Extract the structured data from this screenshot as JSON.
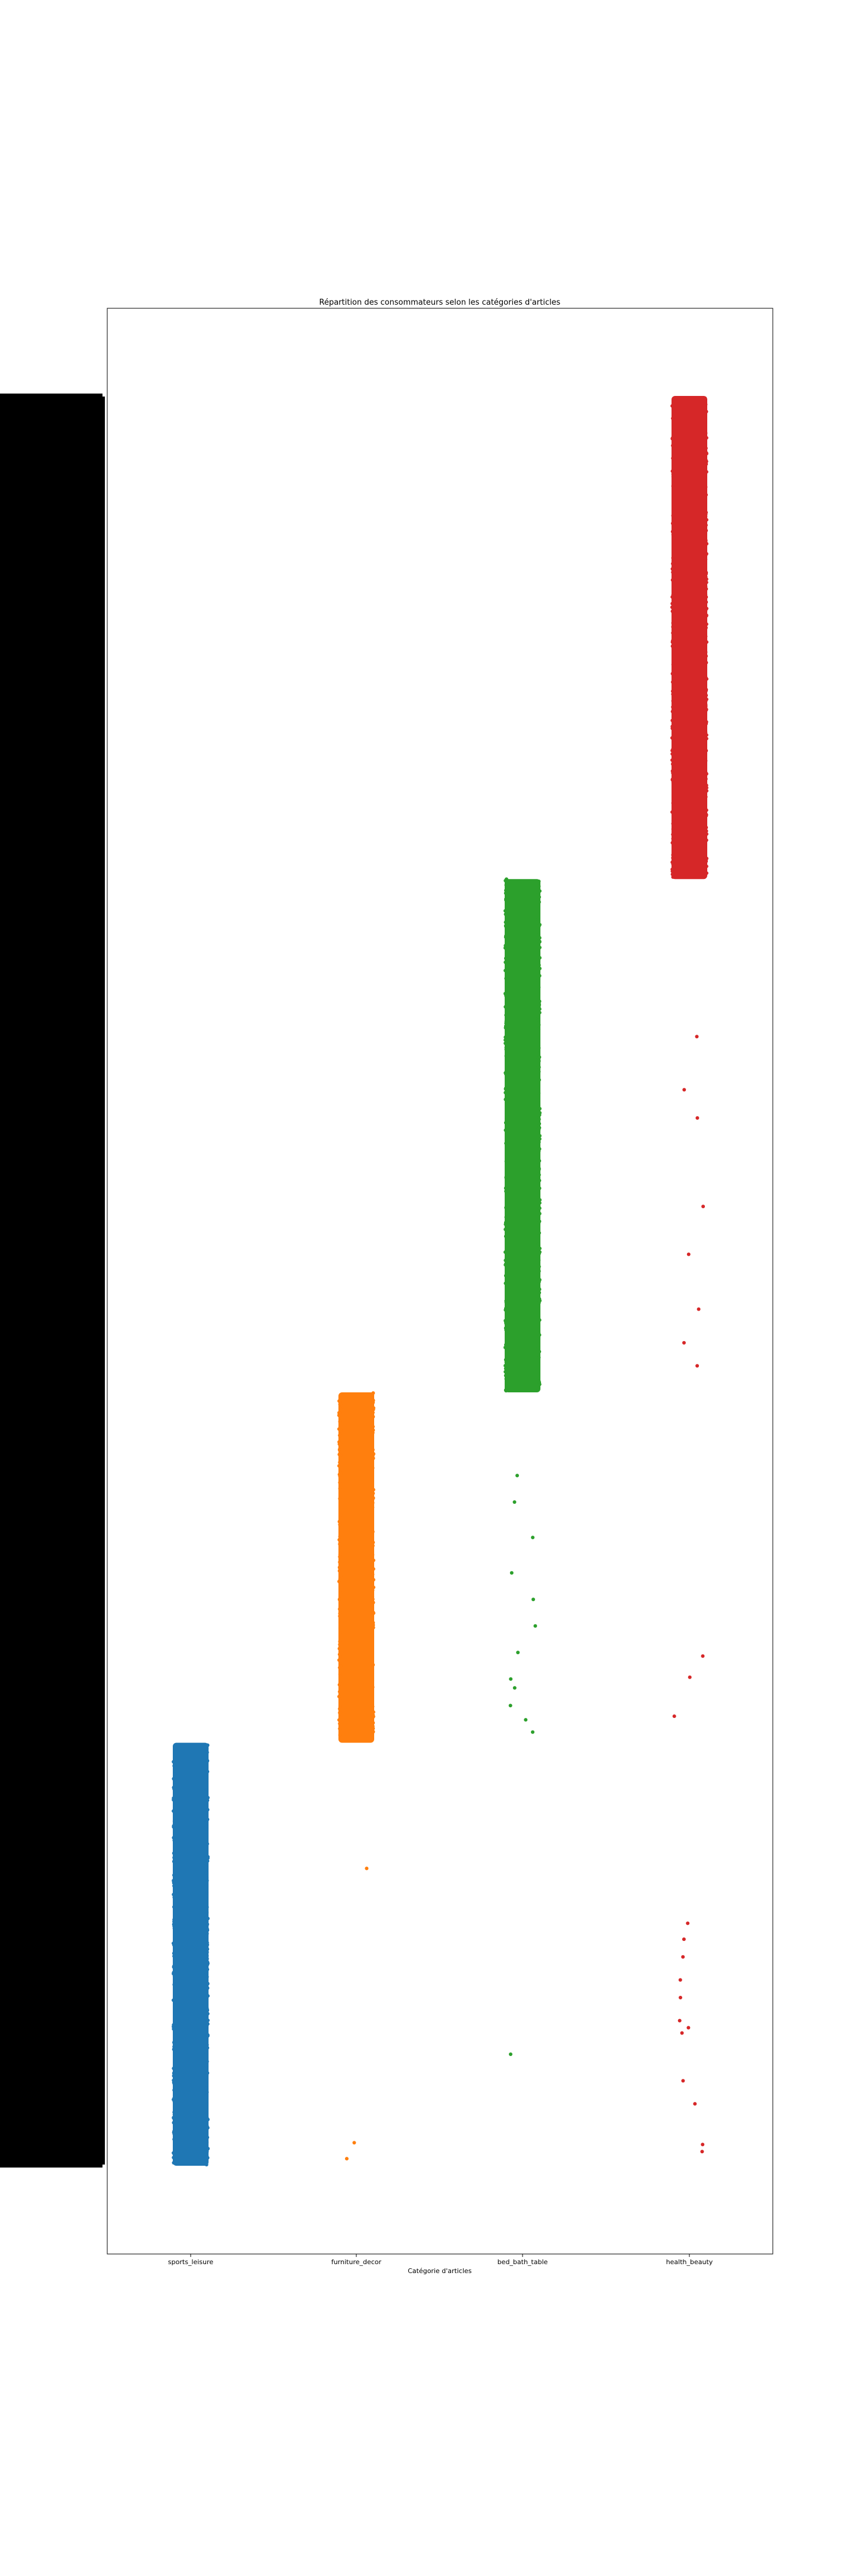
{
  "chart_data": {
    "type": "scatter",
    "title": "Répartition des consommateurs selon les catégories d'articles",
    "xlabel": "Catégorie d'articles",
    "ylabel": "",
    "categories": [
      "sports_leisure",
      "furniture_decor",
      "bed_bath_table",
      "health_beauty"
    ],
    "y_tick_labels_visible": false,
    "grid": false,
    "series": [
      {
        "category": "sports_leisure",
        "color": "#1f77b4",
        "dense_band": [
          0.0,
          0.239
        ],
        "outliers": []
      },
      {
        "category": "furniture_decor",
        "color": "#ff7f0e",
        "dense_band": [
          0.239,
          0.437
        ],
        "outliers": [
          0.168,
          0.013,
          0.004
        ]
      },
      {
        "category": "bed_bath_table",
        "color": "#2ca02c",
        "dense_band": [
          0.437,
          0.727
        ],
        "outliers": [
          0.39,
          0.375,
          0.355,
          0.335,
          0.32,
          0.305,
          0.29,
          0.275,
          0.27,
          0.26,
          0.252,
          0.245,
          0.063
        ]
      },
      {
        "category": "health_beauty",
        "color": "#d62728",
        "dense_band": [
          0.727,
          1.0
        ],
        "outliers": [
          0.638,
          0.608,
          0.592,
          0.542,
          0.515,
          0.484,
          0.465,
          0.452,
          0.288,
          0.276,
          0.254,
          0.137,
          0.128,
          0.118,
          0.105,
          0.095,
          0.082,
          0.078,
          0.075,
          0.048,
          0.035,
          0.012,
          0.008
        ]
      }
    ]
  }
}
